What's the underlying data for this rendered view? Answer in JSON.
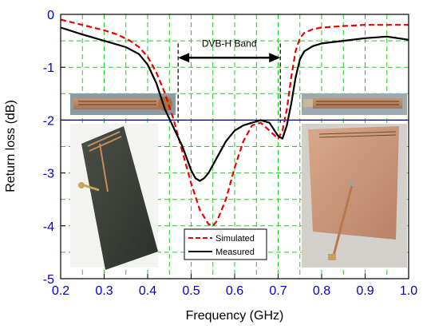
{
  "chart_data": {
    "type": "line",
    "xlabel": "Frequency (GHz)",
    "ylabel": "Return loss (dB)",
    "xlim": [
      0.2,
      1.0
    ],
    "ylim": [
      -5,
      0
    ],
    "x_ticks": [
      0.2,
      0.3,
      0.4,
      0.5,
      0.6,
      0.7,
      0.8,
      0.9,
      1.0
    ],
    "x_tick_labels": [
      "0.2",
      "0.3",
      "0.4",
      "0.5",
      "0.6",
      "0.7",
      "0.8",
      "0.9",
      "1.0"
    ],
    "y_ticks": [
      0,
      -1,
      -2,
      -3,
      -4,
      -5
    ],
    "y_tick_labels": [
      "0",
      "-1",
      "-2",
      "-3",
      "-4",
      "-5"
    ],
    "grid": true,
    "grid_color": "#22cc22",
    "axis_label_color": "#0000cc",
    "reference_line_y": -2,
    "band": {
      "label": "DVB-H Band",
      "start": 0.47,
      "end": 0.705
    },
    "legend_position": "bottom-center",
    "series": [
      {
        "name": "Simulated",
        "color": "#ee0000",
        "style": "dashed",
        "x": [
          0.2,
          0.25,
          0.3,
          0.33,
          0.36,
          0.38,
          0.4,
          0.42,
          0.44,
          0.46,
          0.48,
          0.5,
          0.52,
          0.54,
          0.55,
          0.56,
          0.58,
          0.6,
          0.62,
          0.64,
          0.66,
          0.68,
          0.7,
          0.71,
          0.72,
          0.73,
          0.74,
          0.75,
          0.76,
          0.78,
          0.8,
          0.85,
          0.9,
          0.95,
          1.0
        ],
        "y": [
          -0.1,
          -0.2,
          -0.3,
          -0.38,
          -0.5,
          -0.62,
          -0.8,
          -1.1,
          -1.5,
          -2.0,
          -2.6,
          -3.2,
          -3.7,
          -3.97,
          -4.0,
          -3.9,
          -3.5,
          -2.9,
          -2.4,
          -2.1,
          -2.05,
          -2.2,
          -2.35,
          -2.2,
          -1.8,
          -1.2,
          -0.7,
          -0.45,
          -0.35,
          -0.28,
          -0.25,
          -0.22,
          -0.2,
          -0.2,
          -0.2
        ]
      },
      {
        "name": "Measured",
        "color": "#000000",
        "style": "solid",
        "x": [
          0.2,
          0.25,
          0.3,
          0.35,
          0.38,
          0.4,
          0.42,
          0.44,
          0.46,
          0.48,
          0.5,
          0.51,
          0.52,
          0.53,
          0.54,
          0.56,
          0.58,
          0.6,
          0.62,
          0.64,
          0.66,
          0.68,
          0.7,
          0.71,
          0.72,
          0.73,
          0.74,
          0.75,
          0.76,
          0.78,
          0.8,
          0.85,
          0.9,
          0.95,
          1.0
        ],
        "y": [
          -0.25,
          -0.38,
          -0.5,
          -0.62,
          -0.75,
          -0.95,
          -1.3,
          -1.8,
          -2.15,
          -2.5,
          -2.95,
          -3.1,
          -3.15,
          -3.1,
          -3.0,
          -2.7,
          -2.4,
          -2.2,
          -2.1,
          -2.05,
          -2.0,
          -2.05,
          -2.3,
          -2.35,
          -2.1,
          -1.7,
          -1.2,
          -0.85,
          -0.7,
          -0.6,
          -0.55,
          -0.5,
          -0.45,
          -0.42,
          -0.48
        ]
      }
    ]
  }
}
